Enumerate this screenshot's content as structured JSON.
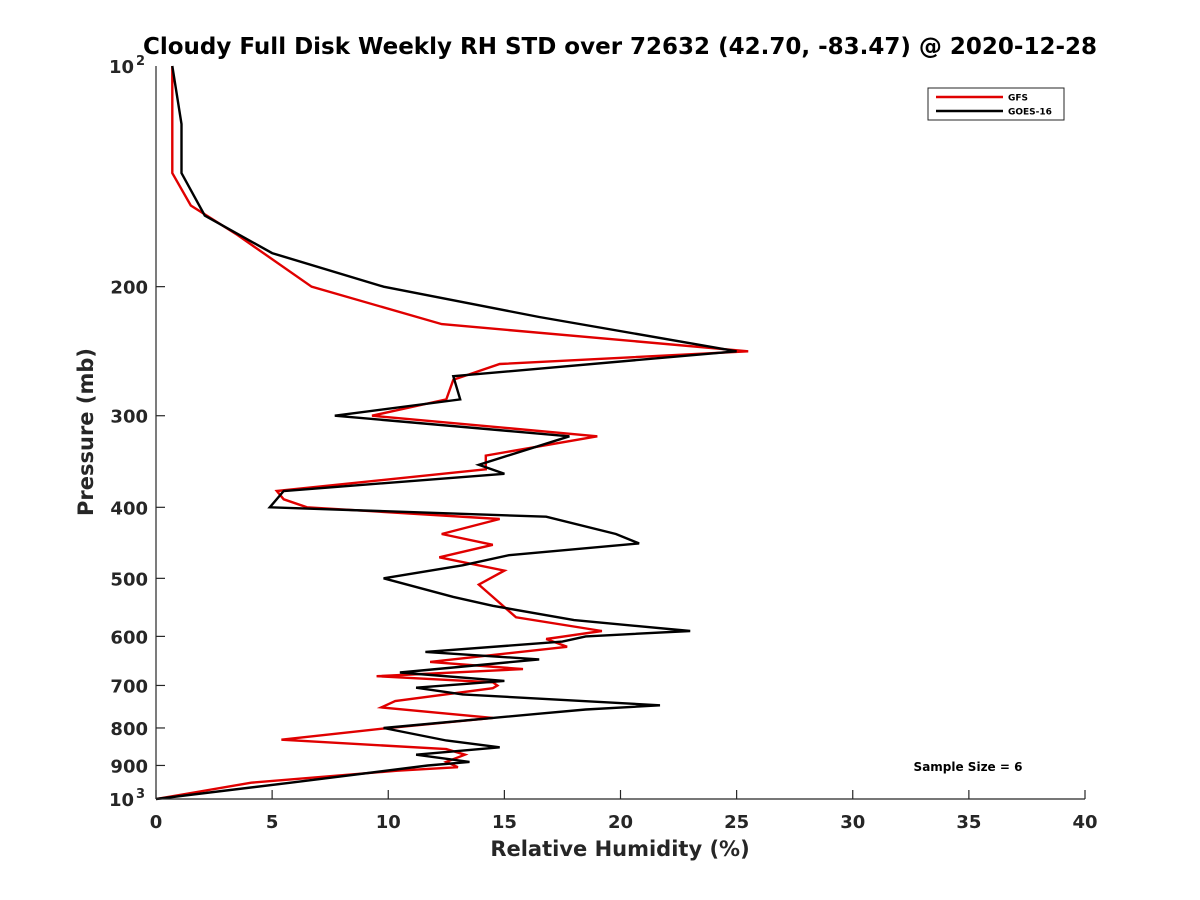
{
  "chart_data": {
    "type": "line",
    "title": "Cloudy Full Disk Weekly RH STD over 72632 (42.70, -83.47) @ 2020-12-28",
    "xlabel": "Relative Humidity (%)",
    "ylabel": "Pressure (mb)",
    "xlim": [
      0,
      40
    ],
    "ylim": [
      100,
      1000
    ],
    "y_scale": "log",
    "y_reversed": true,
    "x_ticks": [
      0,
      5,
      10,
      15,
      20,
      25,
      30,
      35,
      40
    ],
    "x_tick_labels": [
      "0",
      "5",
      "10",
      "15",
      "20",
      "25",
      "30",
      "35",
      "40"
    ],
    "y_ticks": [
      200,
      300,
      400,
      500,
      600,
      700,
      800,
      900
    ],
    "y_tick_labels": [
      "200",
      "300",
      "400",
      "500",
      "600",
      "700",
      "800",
      "900"
    ],
    "y_end_labels": [
      {
        "value": 100,
        "base": "10",
        "exp": "2"
      },
      {
        "value": 1000,
        "base": "10",
        "exp": "3"
      }
    ],
    "grid": false,
    "legend_position": "top-right",
    "annotation": "Sample Size = 6",
    "series": [
      {
        "name": "GFS",
        "color": "#e00000",
        "points": [
          [
            0.7,
            100
          ],
          [
            0.7,
            140
          ],
          [
            1.5,
            155
          ],
          [
            3.5,
            170
          ],
          [
            6.7,
            200
          ],
          [
            12.3,
            225
          ],
          [
            25.5,
            245
          ],
          [
            14.8,
            255
          ],
          [
            12.8,
            268
          ],
          [
            12.5,
            285
          ],
          [
            9.3,
            300
          ],
          [
            19.0,
            320
          ],
          [
            14.2,
            340
          ],
          [
            14.2,
            355
          ],
          [
            5.2,
            380
          ],
          [
            5.5,
            390
          ],
          [
            6.5,
            400
          ],
          [
            14.8,
            415
          ],
          [
            12.3,
            435
          ],
          [
            14.5,
            450
          ],
          [
            12.2,
            468
          ],
          [
            15.0,
            488
          ],
          [
            13.9,
            510
          ],
          [
            14.5,
            530
          ],
          [
            15.5,
            565
          ],
          [
            19.2,
            590
          ],
          [
            16.8,
            605
          ],
          [
            17.7,
            620
          ],
          [
            11.8,
            650
          ],
          [
            15.8,
            665
          ],
          [
            9.5,
            680
          ],
          [
            14.5,
            693
          ],
          [
            14.7,
            700
          ],
          [
            14.5,
            706
          ],
          [
            10.3,
            735
          ],
          [
            9.7,
            750
          ],
          [
            14.5,
            775
          ],
          [
            10.0,
            800
          ],
          [
            5.4,
            830
          ],
          [
            12.5,
            855
          ],
          [
            13.3,
            870
          ],
          [
            12.5,
            890
          ],
          [
            13.0,
            905
          ],
          [
            10.4,
            915
          ],
          [
            4.1,
            950
          ],
          [
            0.0,
            1000
          ]
        ]
      },
      {
        "name": "GOES-16",
        "color": "#000000",
        "points": [
          [
            0.7,
            100
          ],
          [
            1.1,
            120
          ],
          [
            1.1,
            140
          ],
          [
            2.1,
            160
          ],
          [
            5.0,
            180
          ],
          [
            9.8,
            200
          ],
          [
            16.5,
            220
          ],
          [
            25.0,
            245
          ],
          [
            12.8,
            265
          ],
          [
            13.1,
            285
          ],
          [
            7.7,
            300
          ],
          [
            17.8,
            320
          ],
          [
            13.9,
            350
          ],
          [
            15.0,
            360
          ],
          [
            5.5,
            380
          ],
          [
            4.9,
            400
          ],
          [
            16.8,
            412
          ],
          [
            19.8,
            435
          ],
          [
            20.8,
            448
          ],
          [
            15.2,
            465
          ],
          [
            13.2,
            480
          ],
          [
            9.8,
            500
          ],
          [
            12.8,
            530
          ],
          [
            14.5,
            545
          ],
          [
            18.0,
            570
          ],
          [
            23.0,
            590
          ],
          [
            18.5,
            600
          ],
          [
            17.5,
            610
          ],
          [
            11.6,
            630
          ],
          [
            16.5,
            645
          ],
          [
            10.5,
            672
          ],
          [
            15.0,
            690
          ],
          [
            11.2,
            705
          ],
          [
            13.2,
            720
          ],
          [
            21.7,
            745
          ],
          [
            18.5,
            755
          ],
          [
            16.5,
            765
          ],
          [
            9.8,
            800
          ],
          [
            12.5,
            832
          ],
          [
            14.8,
            850
          ],
          [
            11.2,
            870
          ],
          [
            13.5,
            890
          ],
          [
            11.7,
            900
          ],
          [
            5.8,
            950
          ],
          [
            0.0,
            1000
          ]
        ]
      }
    ]
  }
}
